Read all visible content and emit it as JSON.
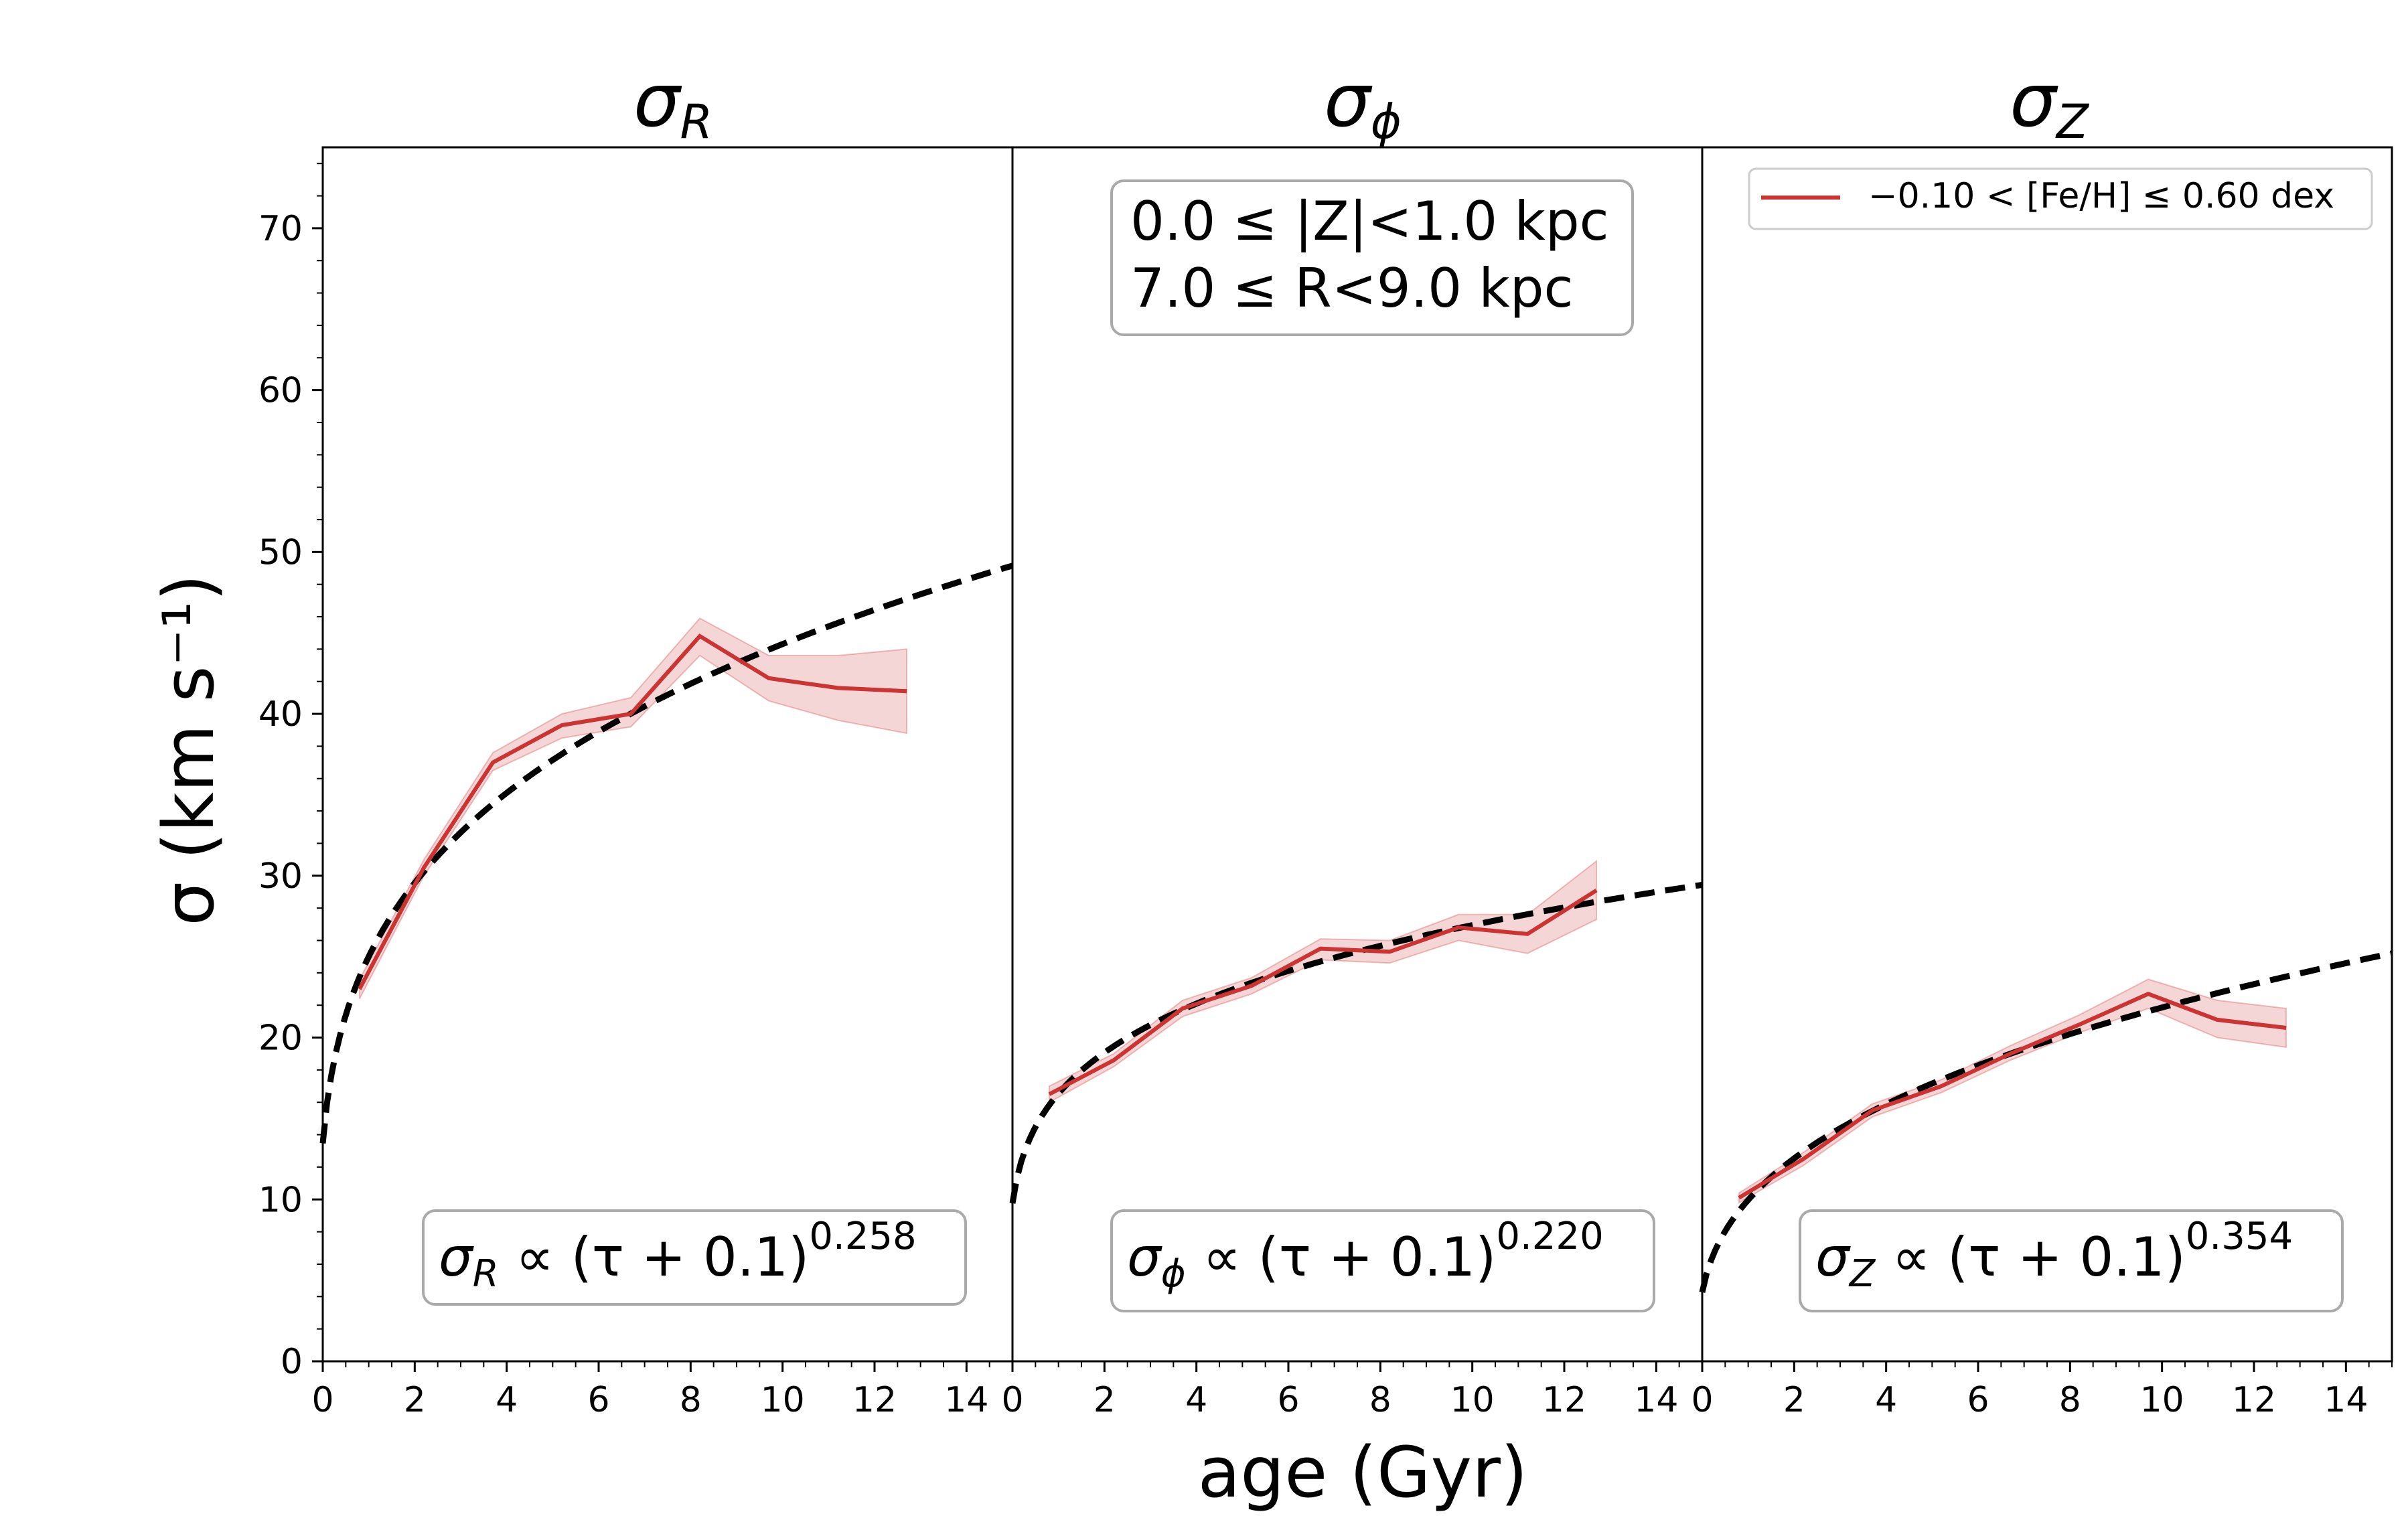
{
  "chart_data": {
    "type": "line",
    "xlabel": "age (Gyr)",
    "ylabel": "σ (km s⁻¹)",
    "xlim": [
      0,
      15
    ],
    "ylim": [
      0,
      75
    ],
    "x_ticks": [
      0,
      2,
      4,
      6,
      8,
      10,
      12,
      14
    ],
    "y_ticks": [
      0,
      10,
      20,
      30,
      40,
      50,
      60,
      70
    ],
    "annotation": {
      "line1": "0.0 ≤ |Z|<1.0 kpc",
      "line2": "7.0 ≤ R<9.0 kpc"
    },
    "legend": {
      "label": "−0.10 < [Fe/H] ≤  0.60 dex",
      "color": "#cc3333",
      "location": "upper-right"
    },
    "colors": {
      "data": "#cc3333",
      "band": "#cc3333",
      "fit": "#000000"
    },
    "panels": [
      {
        "symbol": "σ",
        "subscript": "R",
        "fit_prefix": "σ",
        "fit_subscript": "R",
        "fit_mid": "  ∝  (τ + 0.1)",
        "fit_exponent": "0.258",
        "fit": {
          "coef": 24.4,
          "offset": 0.1,
          "exponent": 0.258
        },
        "series": {
          "x": [
            0.8,
            2.2,
            3.7,
            5.2,
            6.7,
            8.2,
            9.7,
            11.2,
            12.7
          ],
          "y": [
            23.0,
            30.5,
            37.0,
            39.3,
            40.0,
            44.8,
            42.2,
            41.6,
            41.4
          ],
          "y_low": [
            22.4,
            30.0,
            36.5,
            38.5,
            39.2,
            43.6,
            40.8,
            39.6,
            38.8
          ],
          "y_high": [
            23.6,
            31.0,
            37.6,
            40.0,
            41.0,
            45.9,
            43.6,
            43.6,
            44.0
          ]
        }
      },
      {
        "symbol": "σ",
        "subscript": "ϕ",
        "fit_prefix": "σ",
        "fit_subscript": "ϕ",
        "fit_mid": "  ∝  (τ + 0.1)",
        "fit_exponent": "0.220",
        "fit": {
          "coef": 16.2,
          "offset": 0.1,
          "exponent": 0.22
        },
        "series": {
          "x": [
            0.8,
            2.2,
            3.7,
            5.2,
            6.7,
            8.2,
            9.7,
            11.2,
            12.7
          ],
          "y": [
            16.5,
            18.6,
            21.8,
            23.2,
            25.5,
            25.3,
            26.8,
            26.4,
            29.1
          ],
          "y_low": [
            16.0,
            18.2,
            21.3,
            22.7,
            24.8,
            24.6,
            26.0,
            25.2,
            27.3
          ],
          "y_high": [
            17.0,
            19.0,
            22.3,
            23.7,
            26.1,
            26.0,
            27.6,
            27.6,
            30.9
          ]
        }
      },
      {
        "symbol": "σ",
        "subscript": "Z",
        "fit_prefix": "σ",
        "fit_subscript": "Z",
        "fit_mid": "  ∝  (τ + 0.1)",
        "fit_exponent": "0.354",
        "fit": {
          "coef": 9.64,
          "offset": 0.1,
          "exponent": 0.354
        },
        "series": {
          "x": [
            0.8,
            2.2,
            3.7,
            5.2,
            6.7,
            8.2,
            9.7,
            11.2,
            12.7
          ],
          "y": [
            10.1,
            12.5,
            15.5,
            17.0,
            19.0,
            20.8,
            22.7,
            21.1,
            20.6
          ],
          "y_low": [
            9.8,
            12.1,
            15.1,
            16.6,
            18.6,
            20.3,
            21.8,
            20.0,
            19.4
          ],
          "y_high": [
            10.4,
            12.9,
            15.9,
            17.4,
            19.5,
            21.4,
            23.6,
            22.3,
            21.8
          ]
        }
      }
    ]
  }
}
